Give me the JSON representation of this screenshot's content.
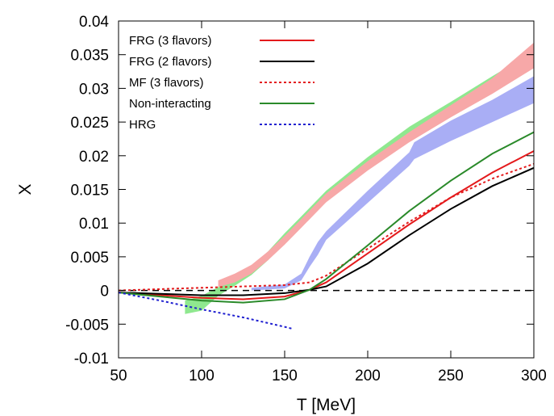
{
  "chart_data": {
    "type": "line",
    "xlabel": "T [MeV]",
    "ylabel": "X",
    "xlim": [
      50,
      300
    ],
    "ylim": [
      -0.01,
      0.04
    ],
    "xticks": [
      "50",
      "100",
      "150",
      "200",
      "250",
      "300"
    ],
    "yticks": [
      "-0.01",
      "-0.005",
      "0",
      "0.005",
      "0.01",
      "0.015",
      "0.02",
      "0.025",
      "0.03",
      "0.035",
      "0.04"
    ],
    "zero_line": {
      "style": "dashed",
      "color": "#000000"
    },
    "legend_position": "top-left",
    "series": [
      {
        "name": "FRG (3 flavors)",
        "color": "#e41a1c",
        "style": "solid",
        "x": [
          50,
          75,
          100,
          125,
          150,
          165,
          175,
          200,
          225,
          250,
          275,
          300
        ],
        "y": [
          -0.0003,
          -0.0007,
          -0.0011,
          -0.0013,
          -0.0009,
          0.0001,
          0.0012,
          0.0055,
          0.0098,
          0.0138,
          0.0175,
          0.0207
        ]
      },
      {
        "name": "FRG (2 flavors)",
        "color": "#000000",
        "style": "solid",
        "x": [
          50,
          75,
          100,
          125,
          150,
          165,
          175,
          200,
          225,
          250,
          275,
          300
        ],
        "y": [
          -0.0003,
          -0.0005,
          -0.0007,
          -0.0007,
          -0.0004,
          0.0001,
          0.0006,
          0.004,
          0.0082,
          0.0121,
          0.0155,
          0.0182
        ]
      },
      {
        "name": "MF (3 flavors)",
        "color": "#e41a1c",
        "style": "dotted",
        "x": [
          50,
          75,
          100,
          125,
          150,
          165,
          175,
          200,
          225,
          250,
          275,
          300
        ],
        "y": [
          0.0,
          0.0002,
          0.0004,
          0.0006,
          0.0008,
          0.0012,
          0.0022,
          0.0062,
          0.0102,
          0.0138,
          0.0166,
          0.0188
        ]
      },
      {
        "name": "Non-interacting",
        "color": "#2a8a2a",
        "style": "solid",
        "x": [
          50,
          75,
          100,
          125,
          150,
          165,
          175,
          200,
          225,
          250,
          275,
          300
        ],
        "y": [
          -0.0003,
          -0.0009,
          -0.0015,
          -0.0018,
          -0.0013,
          0.0001,
          0.0017,
          0.0067,
          0.0118,
          0.0163,
          0.0203,
          0.0235
        ]
      },
      {
        "name": "HRG",
        "color": "#1f1fd0",
        "style": "dotted",
        "x": [
          50,
          75,
          100,
          125,
          150,
          155
        ],
        "y": [
          -0.0003,
          -0.0015,
          -0.0028,
          -0.004,
          -0.0054,
          -0.0057
        ]
      }
    ],
    "bands": [
      {
        "color": "#8fe88f",
        "x": [
          90,
          100,
          110,
          120,
          130,
          140,
          150,
          160,
          175,
          200,
          225,
          250,
          275,
          300
        ],
        "lower": [
          -0.0035,
          -0.003,
          -0.0008,
          0.0007,
          0.0023,
          0.0045,
          0.0072,
          0.0098,
          0.0136,
          0.0183,
          0.0226,
          0.0265,
          0.0302,
          0.034
        ],
        "upper": [
          -0.0015,
          -0.0008,
          0.0005,
          0.0017,
          0.0035,
          0.0058,
          0.0085,
          0.011,
          0.0148,
          0.0198,
          0.0243,
          0.028,
          0.0318,
          0.0355
        ]
      },
      {
        "color": "#f7a8a8",
        "x": [
          110,
          120,
          130,
          140,
          150,
          160,
          175,
          200,
          225,
          250,
          275,
          300
        ],
        "lower": [
          0.0005,
          0.0012,
          0.0025,
          0.0045,
          0.0068,
          0.0093,
          0.0131,
          0.0178,
          0.022,
          0.0257,
          0.0292,
          0.033
        ],
        "upper": [
          0.0015,
          0.0025,
          0.0038,
          0.0058,
          0.0081,
          0.0106,
          0.0144,
          0.0192,
          0.0235,
          0.0275,
          0.0315,
          0.0368
        ]
      },
      {
        "color": "#a9aef5",
        "x": [
          130,
          150,
          160,
          165,
          170,
          175,
          200,
          225,
          228,
          250,
          275,
          300
        ],
        "lower": [
          0.0,
          0.0003,
          0.0015,
          0.0035,
          0.0053,
          0.0075,
          0.013,
          0.0185,
          0.0195,
          0.0222,
          0.025,
          0.0278
        ],
        "upper": [
          0.0004,
          0.0009,
          0.0025,
          0.005,
          0.0072,
          0.0088,
          0.0148,
          0.0205,
          0.022,
          0.0252,
          0.0283,
          0.0318
        ]
      }
    ]
  }
}
